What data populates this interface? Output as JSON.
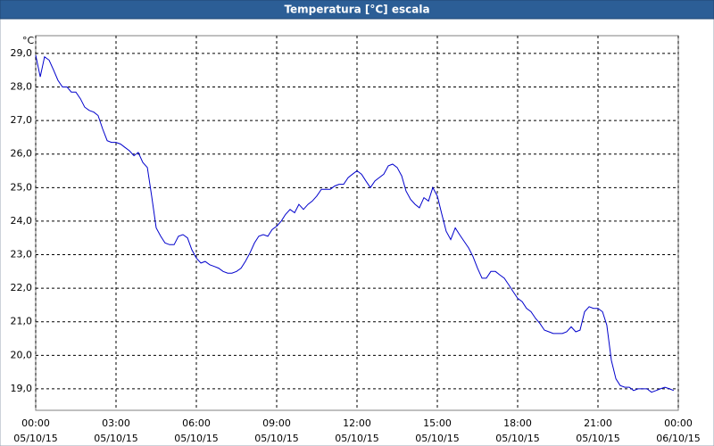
{
  "chart_data": {
    "type": "line",
    "title": "Temperatura [°C] escala",
    "y_label": "°C",
    "grid": true,
    "xlim": [
      0,
      24
    ],
    "xticks": [
      {
        "value": 0,
        "label": "00:00",
        "date": "05/10/15"
      },
      {
        "value": 3,
        "label": "03:00",
        "date": "05/10/15"
      },
      {
        "value": 6,
        "label": "06:00",
        "date": "05/10/15"
      },
      {
        "value": 9,
        "label": "09:00",
        "date": "05/10/15"
      },
      {
        "value": 12,
        "label": "12:00",
        "date": "05/10/15"
      },
      {
        "value": 15,
        "label": "15:00",
        "date": "05/10/15"
      },
      {
        "value": 18,
        "label": "18:00",
        "date": "05/10/15"
      },
      {
        "value": 21,
        "label": "21:00",
        "date": "05/10/15"
      },
      {
        "value": 24,
        "label": "00:00",
        "date": "06/10/15"
      }
    ],
    "ylim": [
      18.36,
      29.53
    ],
    "yticks": [
      {
        "value": 19,
        "label": "19,0"
      },
      {
        "value": 20,
        "label": "20,0"
      },
      {
        "value": 21,
        "label": "21,0"
      },
      {
        "value": 22,
        "label": "22,0"
      },
      {
        "value": 23,
        "label": "23,0"
      },
      {
        "value": 24,
        "label": "24,0"
      },
      {
        "value": 25,
        "label": "25,0"
      },
      {
        "value": 26,
        "label": "26,0"
      },
      {
        "value": 27,
        "label": "27,0"
      },
      {
        "value": 28,
        "label": "28,0"
      },
      {
        "value": 29,
        "label": "29,0"
      }
    ],
    "x": [
      0,
      0.17,
      0.33,
      0.5,
      0.67,
      0.83,
      1,
      1.17,
      1.33,
      1.5,
      1.67,
      1.83,
      2,
      2.17,
      2.33,
      2.5,
      2.67,
      2.83,
      3,
      3.17,
      3.33,
      3.5,
      3.67,
      3.83,
      4,
      4.17,
      4.33,
      4.5,
      4.67,
      4.83,
      5,
      5.17,
      5.33,
      5.5,
      5.67,
      5.83,
      6,
      6.17,
      6.33,
      6.5,
      6.67,
      6.83,
      7,
      7.17,
      7.33,
      7.5,
      7.67,
      7.83,
      8,
      8.17,
      8.33,
      8.5,
      8.67,
      8.83,
      9,
      9.17,
      9.33,
      9.5,
      9.67,
      9.83,
      10,
      10.17,
      10.33,
      10.5,
      10.67,
      10.83,
      11,
      11.17,
      11.33,
      11.5,
      11.67,
      11.83,
      12,
      12.17,
      12.33,
      12.5,
      12.67,
      12.83,
      13,
      13.17,
      13.33,
      13.5,
      13.67,
      13.83,
      14,
      14.17,
      14.33,
      14.5,
      14.67,
      14.83,
      15,
      15.17,
      15.33,
      15.5,
      15.67,
      15.83,
      16,
      16.17,
      16.33,
      16.5,
      16.67,
      16.83,
      17,
      17.17,
      17.33,
      17.5,
      17.67,
      17.83,
      18,
      18.17,
      18.33,
      18.5,
      18.67,
      18.83,
      19,
      19.17,
      19.33,
      19.5,
      19.67,
      19.83,
      20,
      20.17,
      20.33,
      20.5,
      20.67,
      20.83,
      21,
      21.17,
      21.33,
      21.5,
      21.67,
      21.83,
      22,
      22.17,
      22.33,
      22.5,
      22.67,
      22.83,
      23,
      23.17,
      23.33,
      23.5,
      23.67,
      23.83
    ],
    "series": [
      {
        "color": "#0000cc",
        "values": [
          28.95,
          28.3,
          28.9,
          28.8,
          28.5,
          28.2,
          28.0,
          28.0,
          27.85,
          27.85,
          27.65,
          27.4,
          27.3,
          27.25,
          27.15,
          26.75,
          26.4,
          26.35,
          26.35,
          26.3,
          26.2,
          26.1,
          25.95,
          26.05,
          25.75,
          25.6,
          24.75,
          23.8,
          23.55,
          23.35,
          23.3,
          23.3,
          23.55,
          23.6,
          23.5,
          23.15,
          22.9,
          22.75,
          22.8,
          22.7,
          22.65,
          22.6,
          22.5,
          22.45,
          22.45,
          22.5,
          22.6,
          22.8,
          23.05,
          23.35,
          23.55,
          23.6,
          23.55,
          23.75,
          23.85,
          24.0,
          24.2,
          24.35,
          24.25,
          24.5,
          24.35,
          24.5,
          24.6,
          24.75,
          24.95,
          24.95,
          24.95,
          25.05,
          25.1,
          25.1,
          25.3,
          25.4,
          25.5,
          25.4,
          25.2,
          25.0,
          25.2,
          25.3,
          25.4,
          25.65,
          25.7,
          25.6,
          25.35,
          24.9,
          24.65,
          24.5,
          24.4,
          24.7,
          24.6,
          25.0,
          24.75,
          24.2,
          23.7,
          23.45,
          23.8,
          23.6,
          23.4,
          23.2,
          22.95,
          22.6,
          22.3,
          22.3,
          22.5,
          22.5,
          22.4,
          22.3,
          22.1,
          21.9,
          21.7,
          21.6,
          21.4,
          21.3,
          21.1,
          20.95,
          20.75,
          20.7,
          20.65,
          20.65,
          20.65,
          20.7,
          20.85,
          20.7,
          20.75,
          21.3,
          21.45,
          21.4,
          21.4,
          21.3,
          20.9,
          19.85,
          19.3,
          19.1,
          19.05,
          19.05,
          18.95,
          19.0,
          19.0,
          19.0,
          18.9,
          18.95,
          19.0,
          19.05,
          19.0,
          18.95
        ]
      }
    ]
  }
}
